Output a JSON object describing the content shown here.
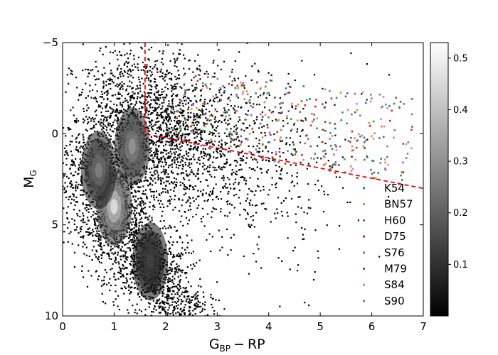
{
  "chart_data": {
    "type": "scatter",
    "title": "",
    "xlabel_main": "G",
    "xlabel_sub1": "BP",
    "xlabel_minus": "−",
    "xlabel_sub2": "RP",
    "ylabel_main": "M",
    "ylabel_sub": "G",
    "xlim": [
      0,
      7
    ],
    "ylim": [
      10,
      -5
    ],
    "y_inverted": true,
    "x_ticks": [
      {
        "value": 0,
        "label": "0"
      },
      {
        "value": 1,
        "label": "1"
      },
      {
        "value": 2,
        "label": "2"
      },
      {
        "value": 3,
        "label": "3"
      },
      {
        "value": 4,
        "label": "4"
      },
      {
        "value": 5,
        "label": "5"
      },
      {
        "value": 6,
        "label": "6"
      },
      {
        "value": 7,
        "label": "7"
      }
    ],
    "y_ticks": [
      {
        "value": -5,
        "label": "−5"
      },
      {
        "value": 0,
        "label": "0"
      },
      {
        "value": 5,
        "label": "5"
      },
      {
        "value": 10,
        "label": "10"
      }
    ],
    "grid": false,
    "density_background": {
      "description_colormap": "greys",
      "colorbar_range": [
        0,
        0.53
      ],
      "colorbar_ticks": [
        {
          "value": 0.1,
          "label": "0.1"
        },
        {
          "value": 0.2,
          "label": "0.2"
        },
        {
          "value": 0.3,
          "label": "0.3"
        },
        {
          "value": 0.4,
          "label": "0.4"
        },
        {
          "value": 0.5,
          "label": "0.5"
        }
      ],
      "peaks": [
        {
          "x": 1.0,
          "y": 4.0,
          "level": 0.53
        },
        {
          "x": 0.7,
          "y": 2.0,
          "level": 0.3
        },
        {
          "x": 1.35,
          "y": 0.7,
          "level": 0.35
        },
        {
          "x": 1.7,
          "y": 7.0,
          "level": 0.15
        }
      ]
    },
    "boundary_line": {
      "color": "#ff0000",
      "style": "dashed",
      "points": [
        [
          1.6,
          -5
        ],
        [
          1.6,
          0
        ],
        [
          7,
          3
        ]
      ]
    },
    "legend_position": "lower-right",
    "series": [
      {
        "name": "K54",
        "color": "#1f77b4"
      },
      {
        "name": "BN57",
        "color": "#ff7f0e"
      },
      {
        "name": "H60",
        "color": "#2ca02c"
      },
      {
        "name": "D75",
        "color": "#d62728"
      },
      {
        "name": "S76",
        "color": "#9467bd"
      },
      {
        "name": "M79",
        "color": "#8c564b"
      },
      {
        "name": "S84",
        "color": "#e377c2"
      },
      {
        "name": "S90",
        "color": "#7f7f7f"
      }
    ]
  }
}
